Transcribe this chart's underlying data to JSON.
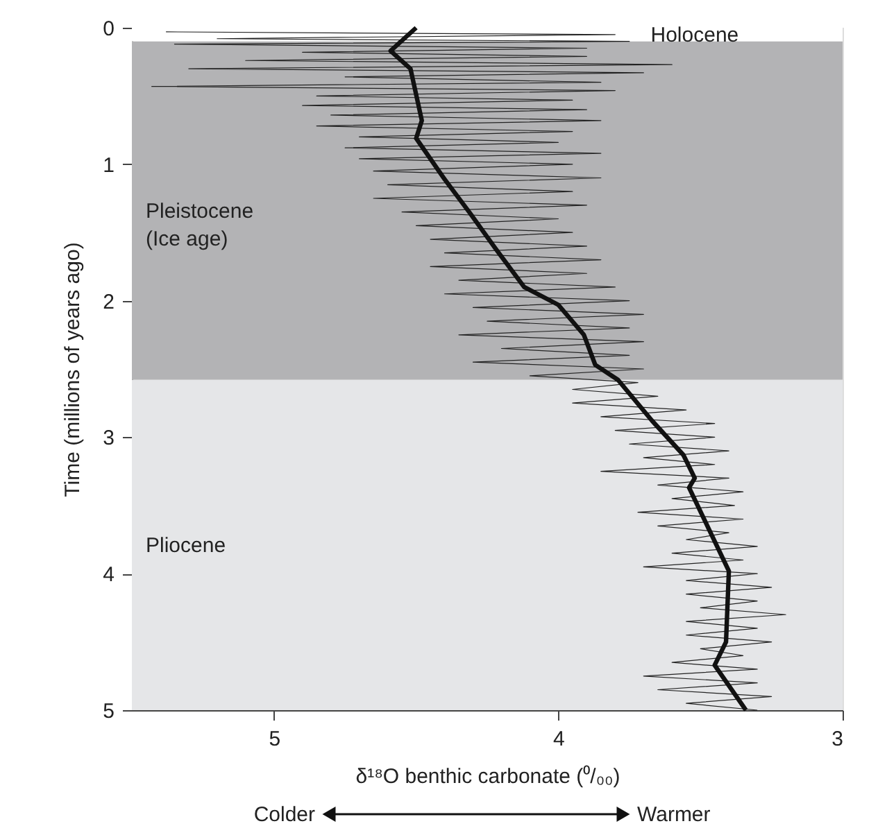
{
  "chart_data": {
    "type": "line",
    "xlabel": "δ¹⁸O benthic carbonate (⁰/₀₀)",
    "ylabel": "Time (millions of years ago)",
    "xlim": [
      5.5,
      3
    ],
    "xticks": [
      5,
      4,
      3
    ],
    "ylim": [
      5,
      0
    ],
    "yticks": [
      0,
      1,
      2,
      3,
      4,
      5
    ],
    "grid": false,
    "line_style": "solid",
    "marker": "none",
    "bands": [
      {
        "axis": "y",
        "from": 0,
        "to": 0.1,
        "label": "Holocene",
        "color": "#ffffff"
      },
      {
        "axis": "y",
        "from": 0.1,
        "to": 2.58,
        "label": "Pleistocene\n(Ice age)",
        "color": "#b3b3b5"
      },
      {
        "axis": "y",
        "from": 2.58,
        "to": 5,
        "label": "Pliocene",
        "color": "#e5e6e8"
      }
    ],
    "annotations": [
      "Colder",
      "Warmer"
    ],
    "series": [
      {
        "color": "#222222",
        "x": [
          5.38,
          3.8,
          5.2,
          3.75,
          5.35,
          3.9,
          4.9,
          3.9,
          5.1,
          3.6,
          5.3,
          3.7,
          4.75,
          3.85,
          5.43,
          3.8,
          4.85,
          3.95,
          4.9,
          3.9,
          4.8,
          3.85,
          4.85,
          3.95,
          4.7,
          4.0,
          4.75,
          3.85,
          4.7,
          3.95,
          4.65,
          3.85,
          4.6,
          3.95,
          4.65,
          3.9,
          4.55,
          4.0,
          4.5,
          3.95,
          4.45,
          3.9,
          4.4,
          3.85,
          4.45,
          3.9,
          4.35,
          3.8,
          4.4,
          3.75,
          4.3,
          3.7,
          4.25,
          3.75,
          4.35,
          3.7,
          4.2,
          3.75,
          4.3,
          3.7,
          4.1,
          3.72,
          3.95,
          3.65,
          3.95,
          3.55,
          3.85,
          3.45,
          3.8,
          3.45,
          3.75,
          3.4,
          3.7,
          3.45,
          3.85,
          3.4,
          3.65,
          3.35,
          3.6,
          3.38,
          3.72,
          3.35,
          3.65,
          3.4,
          3.55,
          3.3,
          3.6,
          3.35,
          3.7,
          3.3,
          3.55,
          3.25,
          3.55,
          3.3,
          3.5,
          3.2,
          3.55,
          3.3,
          3.55,
          3.25,
          3.5,
          3.35,
          3.6,
          3.3,
          3.7,
          3.3,
          3.65,
          3.25,
          3.55,
          3.3
        ],
        "values": [
          0.03,
          0.05,
          0.08,
          0.1,
          0.12,
          0.15,
          0.18,
          0.21,
          0.24,
          0.27,
          0.3,
          0.33,
          0.36,
          0.4,
          0.43,
          0.46,
          0.5,
          0.53,
          0.57,
          0.6,
          0.64,
          0.68,
          0.72,
          0.76,
          0.8,
          0.84,
          0.88,
          0.92,
          0.96,
          1.0,
          1.05,
          1.1,
          1.15,
          1.2,
          1.25,
          1.3,
          1.35,
          1.4,
          1.45,
          1.5,
          1.55,
          1.6,
          1.65,
          1.7,
          1.75,
          1.8,
          1.85,
          1.9,
          1.95,
          2.0,
          2.05,
          2.1,
          2.15,
          2.2,
          2.25,
          2.3,
          2.35,
          2.4,
          2.45,
          2.5,
          2.55,
          2.6,
          2.65,
          2.7,
          2.75,
          2.8,
          2.85,
          2.9,
          2.95,
          3.0,
          3.05,
          3.1,
          3.15,
          3.2,
          3.25,
          3.3,
          3.35,
          3.4,
          3.45,
          3.5,
          3.55,
          3.6,
          3.65,
          3.7,
          3.75,
          3.8,
          3.85,
          3.9,
          3.95,
          4.0,
          4.05,
          4.1,
          4.15,
          4.2,
          4.25,
          4.3,
          4.35,
          4.4,
          4.45,
          4.5,
          4.55,
          4.6,
          4.65,
          4.7,
          4.75,
          4.8,
          4.85,
          4.9,
          4.95,
          5.0
        ]
      },
      {
        "color": "#111111",
        "x": [
          4.5,
          4.59,
          4.52,
          4.48,
          4.5,
          4.4,
          4.31,
          4.22,
          4.12,
          4.0,
          3.91,
          3.87,
          3.79,
          3.67,
          3.56,
          3.52,
          3.54,
          3.4,
          3.41,
          3.45,
          3.34
        ],
        "values": [
          0,
          0.17,
          0.3,
          0.68,
          0.81,
          1.11,
          1.36,
          1.62,
          1.9,
          2.03,
          2.25,
          2.47,
          2.58,
          2.88,
          3.13,
          3.3,
          3.37,
          3.98,
          4.5,
          4.67,
          5.0
        ]
      }
    ]
  }
}
